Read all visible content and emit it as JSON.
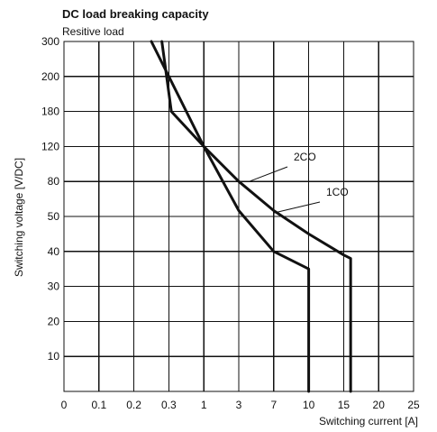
{
  "chart_data": {
    "type": "line",
    "title": "DC load breaking capacity",
    "subtitle": "Resitive load",
    "xlabel": "Switching current [A]",
    "ylabel": "Switching voltage [V/DC]",
    "x_ticks": [
      "0",
      "0.1",
      "0.2",
      "0.3",
      "1",
      "3",
      "7",
      "10",
      "15",
      "20",
      "25"
    ],
    "y_ticks": [
      "10",
      "20",
      "30",
      "40",
      "50",
      "80",
      "120",
      "180",
      "200",
      "300"
    ],
    "grid": true,
    "series": [
      {
        "name": "1CO",
        "points": [
          {
            "x": 0.28,
            "y": 300
          },
          {
            "x": 0.35,
            "y": 180
          },
          {
            "x": 1,
            "y": 120
          },
          {
            "x": 3,
            "y": 80
          },
          {
            "x": 7,
            "y": 55
          },
          {
            "x": 10,
            "y": 45
          },
          {
            "x": 15,
            "y": 39
          },
          {
            "x": 16,
            "y": 38
          },
          {
            "x": 16,
            "y": 0
          }
        ]
      },
      {
        "name": "2CO",
        "points": [
          {
            "x": 0.25,
            "y": 300
          },
          {
            "x": 0.3,
            "y": 200
          },
          {
            "x": 1,
            "y": 120
          },
          {
            "x": 3,
            "y": 55
          },
          {
            "x": 7,
            "y": 40
          },
          {
            "x": 10,
            "y": 35
          },
          {
            "x": 10,
            "y": 0
          }
        ]
      }
    ],
    "guide_marks": [
      {
        "x": 15,
        "y_from": 0,
        "y_to": 38
      }
    ]
  }
}
